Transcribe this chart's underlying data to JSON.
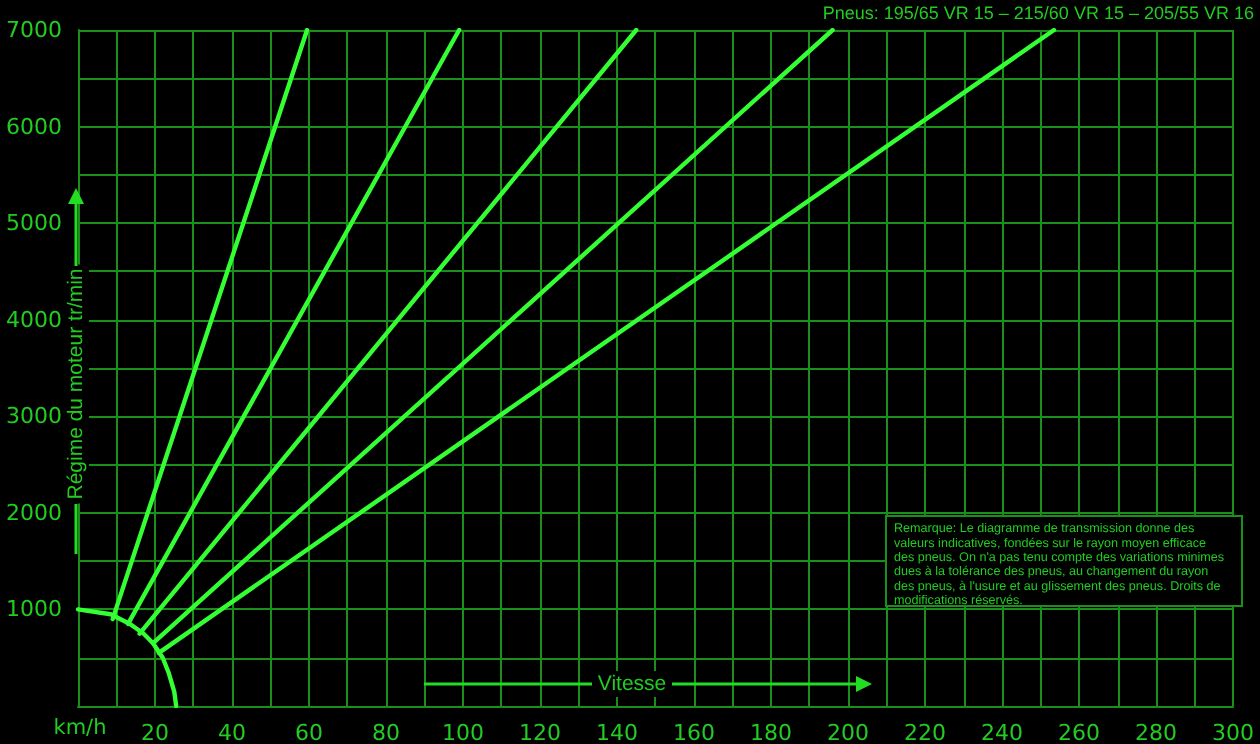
{
  "chart_data": {
    "type": "line",
    "title": "Pneus: 195/65 VR 15 – 215/60 VR 15 – 205/55 VR 16",
    "xlabel": "Vitesse",
    "ylabel": "Régime du moteur tr/min",
    "annotations": [
      "Remarque: Le diagramme de transmission donne des valeurs indicatives, fondées sur le rayon moyen efficace des pneus. On n'a pas tenu compte des variations minimes dues à la tolérance des pneus, au changement du rayon des pneus, à l'usure et au glissement des pneus. Droits de modifications réservés.",
      "km/h"
    ],
    "xlim": [
      0,
      300
    ],
    "ylim": [
      0,
      7000
    ],
    "xticks": [
      {
        "value": 0,
        "label": null
      },
      {
        "value": 10,
        "label": null
      },
      20,
      {
        "value": 30,
        "label": null
      },
      40,
      {
        "value": 50,
        "label": null
      },
      60,
      {
        "value": 70,
        "label": null
      },
      80,
      {
        "value": 90,
        "label": null
      },
      100,
      {
        "value": 110,
        "label": null
      },
      120,
      {
        "value": 130,
        "label": null
      },
      140,
      {
        "value": 150,
        "label": null
      },
      160,
      {
        "value": 170,
        "label": null
      },
      180,
      {
        "value": 190,
        "label": null
      },
      200,
      {
        "value": 210,
        "label": null
      },
      220,
      {
        "value": 230,
        "label": null
      },
      240,
      {
        "value": 250,
        "label": null
      },
      260,
      {
        "value": 270,
        "label": null
      },
      280,
      {
        "value": 290,
        "label": null
      },
      300
    ],
    "yticks": [
      {
        "value": 0,
        "label": null
      },
      {
        "value": 500,
        "label": null
      },
      1000,
      {
        "value": 1500,
        "label": null
      },
      2000,
      {
        "value": 2500,
        "label": null
      },
      3000,
      {
        "value": 3500,
        "label": null
      },
      4000,
      {
        "value": 4500,
        "label": null
      },
      5000,
      {
        "value": 5500,
        "label": null
      },
      6000,
      {
        "value": 6500,
        "label": null
      },
      7000
    ],
    "grid": true,
    "marker": "none",
    "line_style": "solid",
    "series": [
      {
        "color": "#33ff33",
        "x": [
          9,
          59.5
        ],
        "values": [
          900,
          7000
        ]
      },
      {
        "color": "#33ff33",
        "x": [
          13,
          99
        ],
        "values": [
          850,
          7000
        ]
      },
      {
        "color": "#33ff33",
        "x": [
          16,
          145
        ],
        "values": [
          750,
          7000
        ]
      },
      {
        "color": "#33ff33",
        "x": [
          19.5,
          196
        ],
        "values": [
          650,
          7000
        ]
      },
      {
        "color": "#33ff33",
        "x": [
          21,
          253.5
        ],
        "values": [
          550,
          7000
        ]
      },
      {
        "color": "#33ff33",
        "x": [
          0,
          8.5,
          13.5,
          17,
          19.5,
          22,
          23.5,
          25,
          25.5
        ],
        "values": [
          1000,
          950,
          850,
          750,
          650,
          500,
          350,
          150,
          0
        ]
      }
    ]
  }
}
